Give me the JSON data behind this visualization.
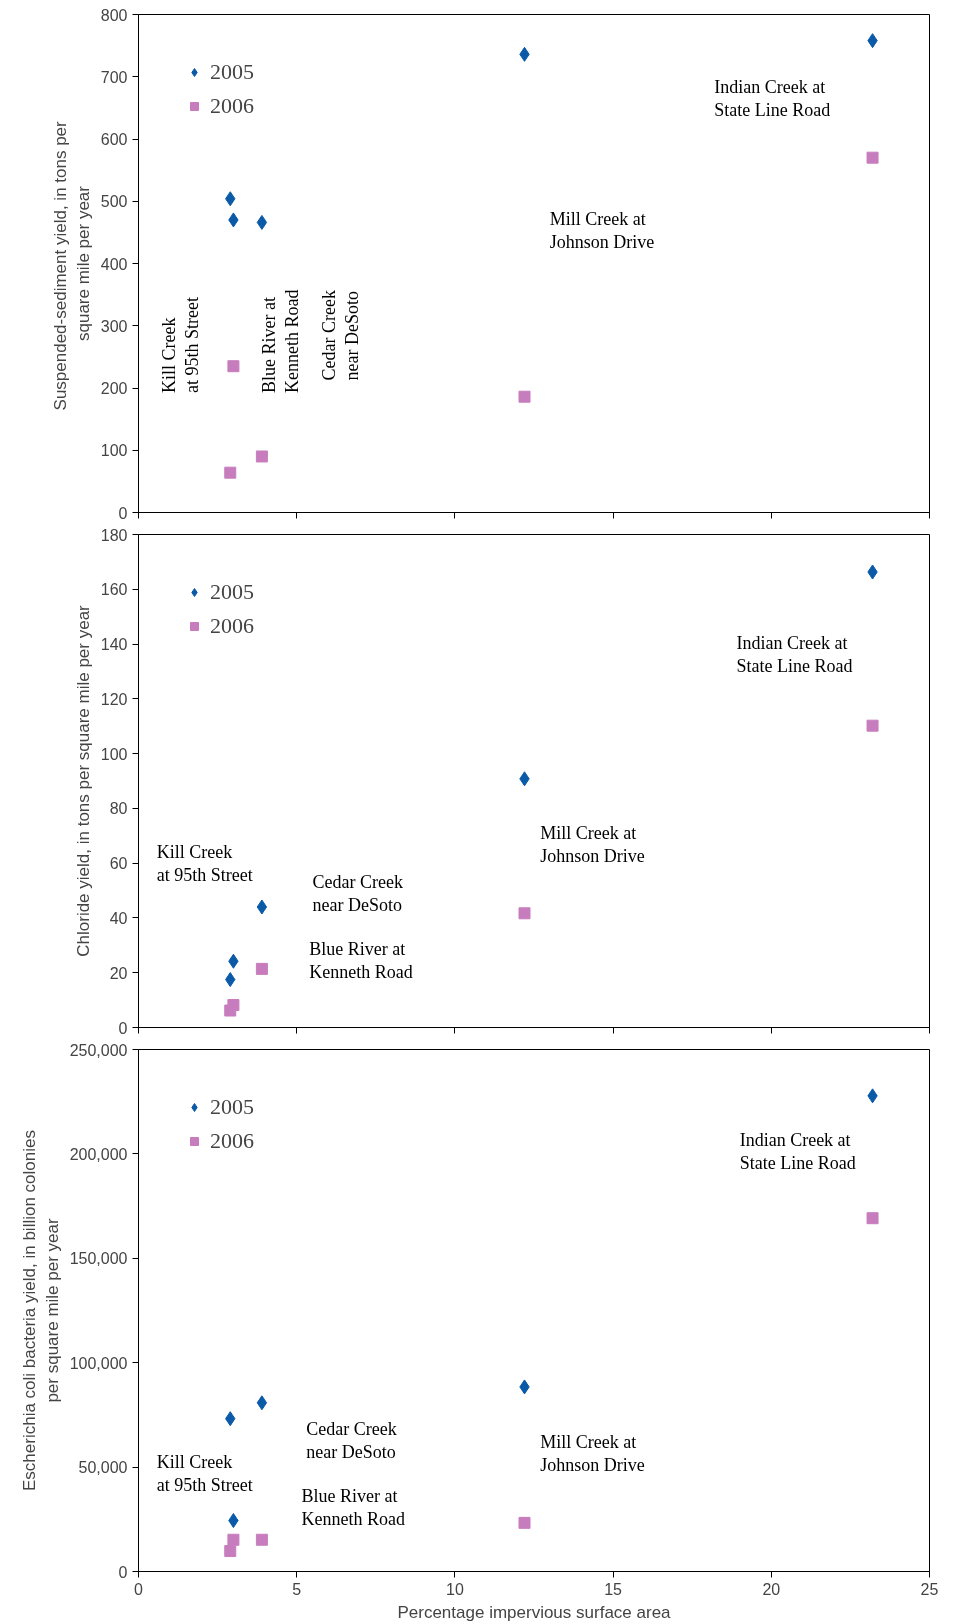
{
  "chart_data": [
    {
      "type": "scatter",
      "ylabel": "Suspended-sediment  yield, in tons per\nsquare mile per year",
      "x": [
        2.9,
        3.0,
        3.9,
        12.2,
        23.2
      ],
      "xlim": [
        0,
        25
      ],
      "xticks": [
        0,
        5,
        10,
        15,
        20,
        25
      ],
      "ylim": [
        0,
        800
      ],
      "yticks": [
        0,
        100,
        200,
        300,
        400,
        500,
        600,
        700,
        800
      ],
      "tick_labels": "y",
      "grid": false,
      "legend": "top left",
      "series": [
        {
          "name": "2005",
          "color": "#0a5aa8",
          "marker": "diamond",
          "values": [
            504,
            470,
            466,
            736,
            758
          ]
        },
        {
          "name": "2006",
          "color": "#c77dbd",
          "marker": "square",
          "values": [
            64,
            235,
            90,
            186,
            570
          ]
        }
      ],
      "annotations": [
        "Kill Creek\nat 95th Street",
        "Blue River at\nKenneth Road",
        "Cedar Creek\nnear DeSoto",
        "Mill Creek at\nJohnson Drive",
        "Indian Creek at\nState Line Road"
      ]
    },
    {
      "type": "scatter",
      "ylabel": "Chloride yield, in tons per square mile per year",
      "x": [
        2.9,
        3.0,
        3.9,
        12.2,
        23.2
      ],
      "xlim": [
        0,
        25
      ],
      "xticks": [
        0,
        5,
        10,
        15,
        20,
        25
      ],
      "ylim": [
        0,
        180
      ],
      "yticks": [
        0,
        20,
        40,
        60,
        80,
        100,
        120,
        140,
        160,
        180
      ],
      "tick_labels": "y",
      "grid": false,
      "legend": "top left",
      "series": [
        {
          "name": "2005",
          "color": "#0a5aa8",
          "marker": "diamond",
          "values": [
            17.5,
            24.2,
            44,
            90.8,
            166.3
          ]
        },
        {
          "name": "2006",
          "color": "#c77dbd",
          "marker": "square",
          "values": [
            6.2,
            8.2,
            21.4,
            41.7,
            110.2
          ]
        }
      ],
      "annotations": [
        "Kill Creek\nat 95th Street",
        "Blue River at\nKenneth Road",
        "Cedar Creek\nnear DeSoto",
        "Mill Creek at\nJohnson Drive",
        "Indian Creek at\nState Line Road"
      ]
    },
    {
      "type": "scatter",
      "xlabel": "Percentage impervious surface area",
      "ylabel": "Escherichia coli bacteria yield, in billion colonies\nper square mile per year",
      "x": [
        2.9,
        3.0,
        3.9,
        12.2,
        23.2
      ],
      "xlim": [
        0,
        25
      ],
      "xticks": [
        0,
        5,
        10,
        15,
        20,
        25
      ],
      "ylim": [
        0,
        250000
      ],
      "yticks": [
        {
          "value": 0,
          "label": "0"
        },
        {
          "value": 50000,
          "label": "50,000"
        },
        {
          "value": 100000,
          "label": "100,000"
        },
        {
          "value": 150000,
          "label": "150,000"
        },
        {
          "value": 200000,
          "label": "200,000"
        },
        {
          "value": 250000,
          "label": "250,000"
        }
      ],
      "grid": false,
      "legend": "top left",
      "series": [
        {
          "name": "2005",
          "color": "#0a5aa8",
          "marker": "diamond",
          "values": [
            73200,
            24400,
            80800,
            88400,
            227800
          ]
        },
        {
          "name": "2006",
          "color": "#c77dbd",
          "marker": "square",
          "values": [
            9800,
            15200,
            15200,
            23300,
            169200
          ]
        }
      ],
      "annotations": [
        "Kill Creek\nat 95th Street",
        "Blue River at\nKenneth Road",
        "Cedar Creek\nnear DeSoto",
        "Mill Creek at\nJohnson Drive",
        "Indian Creek at\nState Line Road"
      ]
    }
  ]
}
